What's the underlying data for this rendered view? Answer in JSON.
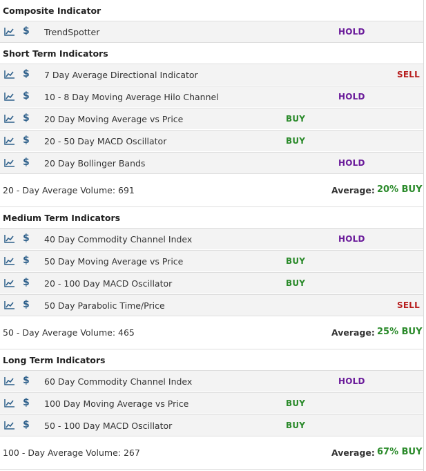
{
  "sections": {
    "composite": {
      "title": "Composite Indicator"
    },
    "short": {
      "title": "Short Term Indicators",
      "volume_text": "20 - Day Average Volume: 691",
      "average_label": "Average:",
      "average_value": "20% BUY"
    },
    "medium": {
      "title": "Medium Term Indicators",
      "volume_text": "50 - Day Average Volume: 465",
      "average_label": "Average:",
      "average_value": "25% BUY"
    },
    "long": {
      "title": "Long Term Indicators",
      "volume_text": "100 - Day Average Volume: 267",
      "average_label": "Average:",
      "average_value": "67% BUY"
    }
  },
  "icons": {
    "chart": "line-chart-icon",
    "price": "dollar-icon"
  },
  "dollar_symbol": "$",
  "colors": {
    "buy": "#2a8a2a",
    "hold": "#6a1b9a",
    "sell": "#b71c1c",
    "icon": "#2d5f8a"
  },
  "rows": [
    {
      "name": "TrendSpotter",
      "signal": "HOLD"
    },
    {
      "name": "7 Day Average Directional Indicator",
      "signal": "SELL"
    },
    {
      "name": "10 - 8 Day Moving Average Hilo Channel",
      "signal": "HOLD"
    },
    {
      "name": "20 Day Moving Average vs Price",
      "signal": "BUY"
    },
    {
      "name": "20 - 50 Day MACD Oscillator",
      "signal": "BUY"
    },
    {
      "name": "20 Day Bollinger Bands",
      "signal": "HOLD"
    },
    {
      "name": "40 Day Commodity Channel Index",
      "signal": "HOLD"
    },
    {
      "name": "50 Day Moving Average vs Price",
      "signal": "BUY"
    },
    {
      "name": "20 - 100 Day MACD Oscillator",
      "signal": "BUY"
    },
    {
      "name": "50 Day Parabolic Time/Price",
      "signal": "SELL"
    },
    {
      "name": "60 Day Commodity Channel Index",
      "signal": "HOLD"
    },
    {
      "name": "100 Day Moving Average vs Price",
      "signal": "BUY"
    },
    {
      "name": "50 - 100 Day MACD Oscillator",
      "signal": "BUY"
    }
  ]
}
